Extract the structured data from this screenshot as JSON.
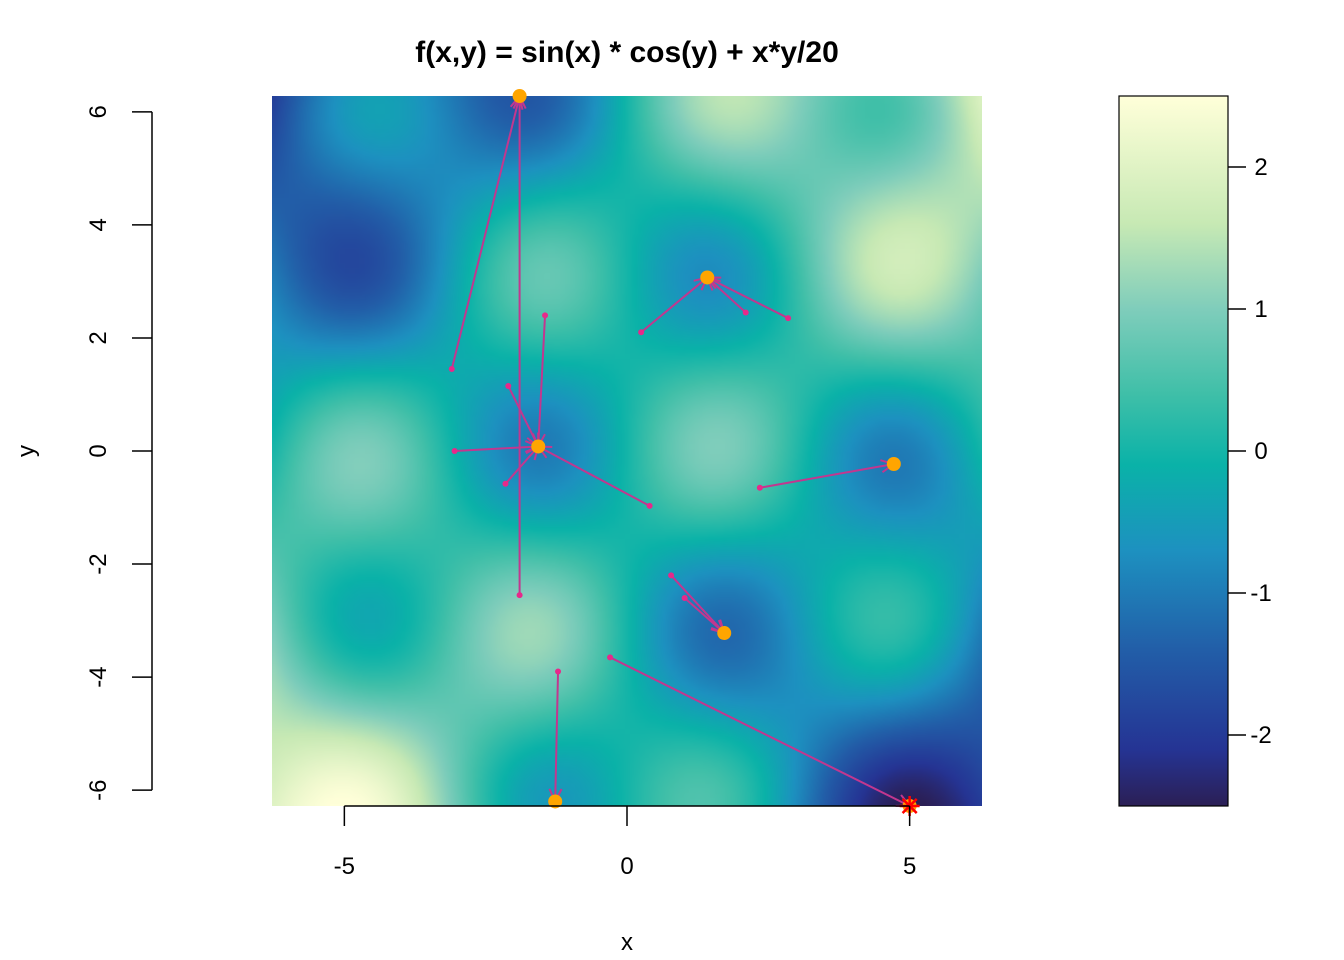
{
  "chart_data": {
    "type": "heatmap",
    "title": "f(x,y) = sin(x) * cos(y) + x*y/20",
    "xlabel": "x",
    "ylabel": "y",
    "xlim": [
      -6.28,
      6.28
    ],
    "ylim": [
      -6.28,
      6.28
    ],
    "x_ticks": [
      {
        "value": -5,
        "label": "-5"
      },
      {
        "value": 0,
        "label": "0"
      },
      {
        "value": 5,
        "label": "5"
      }
    ],
    "y_ticks": [
      {
        "value": -6,
        "label": "-6"
      },
      {
        "value": -4,
        "label": "-4"
      },
      {
        "value": -2,
        "label": "-2"
      },
      {
        "value": 0,
        "label": "0"
      },
      {
        "value": 2,
        "label": "2"
      },
      {
        "value": 4,
        "label": "4"
      },
      {
        "value": 6,
        "label": "6"
      }
    ],
    "colorbar": {
      "range": [
        -2.5,
        2.5
      ],
      "ticks": [
        {
          "value": 2,
          "label": "2"
        },
        {
          "value": 1,
          "label": "1"
        },
        {
          "value": 0,
          "label": "0"
        },
        {
          "value": -1,
          "label": "-1"
        },
        {
          "value": -2,
          "label": "-2"
        }
      ],
      "palette": "YlGnBu"
    },
    "colors": {
      "arrow": "#c2378f",
      "start_point": "#e7298a",
      "end_point": "#ffa500",
      "star": "#ff0000"
    },
    "trajectories": [
      {
        "start": [
          -3.1,
          1.45
        ],
        "end": [
          -1.9,
          6.28
        ]
      },
      {
        "start": [
          -1.9,
          -2.55
        ],
        "end": [
          -1.9,
          6.28
        ]
      },
      {
        "start": [
          -1.45,
          2.4
        ],
        "end": [
          -1.57,
          0.08
        ]
      },
      {
        "start": [
          -2.1,
          1.15
        ],
        "end": [
          -1.57,
          0.08
        ]
      },
      {
        "start": [
          -3.05,
          0.0
        ],
        "end": [
          -1.57,
          0.08
        ]
      },
      {
        "start": [
          -2.15,
          -0.58
        ],
        "end": [
          -1.57,
          0.08
        ]
      },
      {
        "start": [
          0.4,
          -0.97
        ],
        "end": [
          -1.57,
          0.08
        ]
      },
      {
        "start": [
          0.25,
          2.1
        ],
        "end": [
          1.42,
          3.07
        ]
      },
      {
        "start": [
          2.1,
          2.45
        ],
        "end": [
          1.42,
          3.07
        ]
      },
      {
        "start": [
          2.85,
          2.35
        ],
        "end": [
          1.42,
          3.07
        ]
      },
      {
        "start": [
          2.35,
          -0.65
        ],
        "end": [
          4.72,
          -0.23
        ]
      },
      {
        "start": [
          0.78,
          -2.2
        ],
        "end": [
          1.72,
          -3.22
        ]
      },
      {
        "start": [
          1.02,
          -2.6
        ],
        "end": [
          1.72,
          -3.22
        ]
      },
      {
        "start": [
          -1.22,
          -3.9
        ],
        "end": [
          -1.27,
          -6.2
        ]
      },
      {
        "start": [
          -0.3,
          -3.65
        ],
        "end": [
          5.0,
          -6.28
        ]
      }
    ],
    "endpoints": [
      {
        "x": -1.9,
        "y": 6.28
      },
      {
        "x": -1.57,
        "y": 0.08
      },
      {
        "x": 1.42,
        "y": 3.07
      },
      {
        "x": 4.72,
        "y": -0.23
      },
      {
        "x": 1.72,
        "y": -3.22
      },
      {
        "x": -1.27,
        "y": -6.2
      },
      {
        "x": 5.0,
        "y": -6.28
      }
    ],
    "best": {
      "x": 5.0,
      "y": -6.28
    }
  }
}
